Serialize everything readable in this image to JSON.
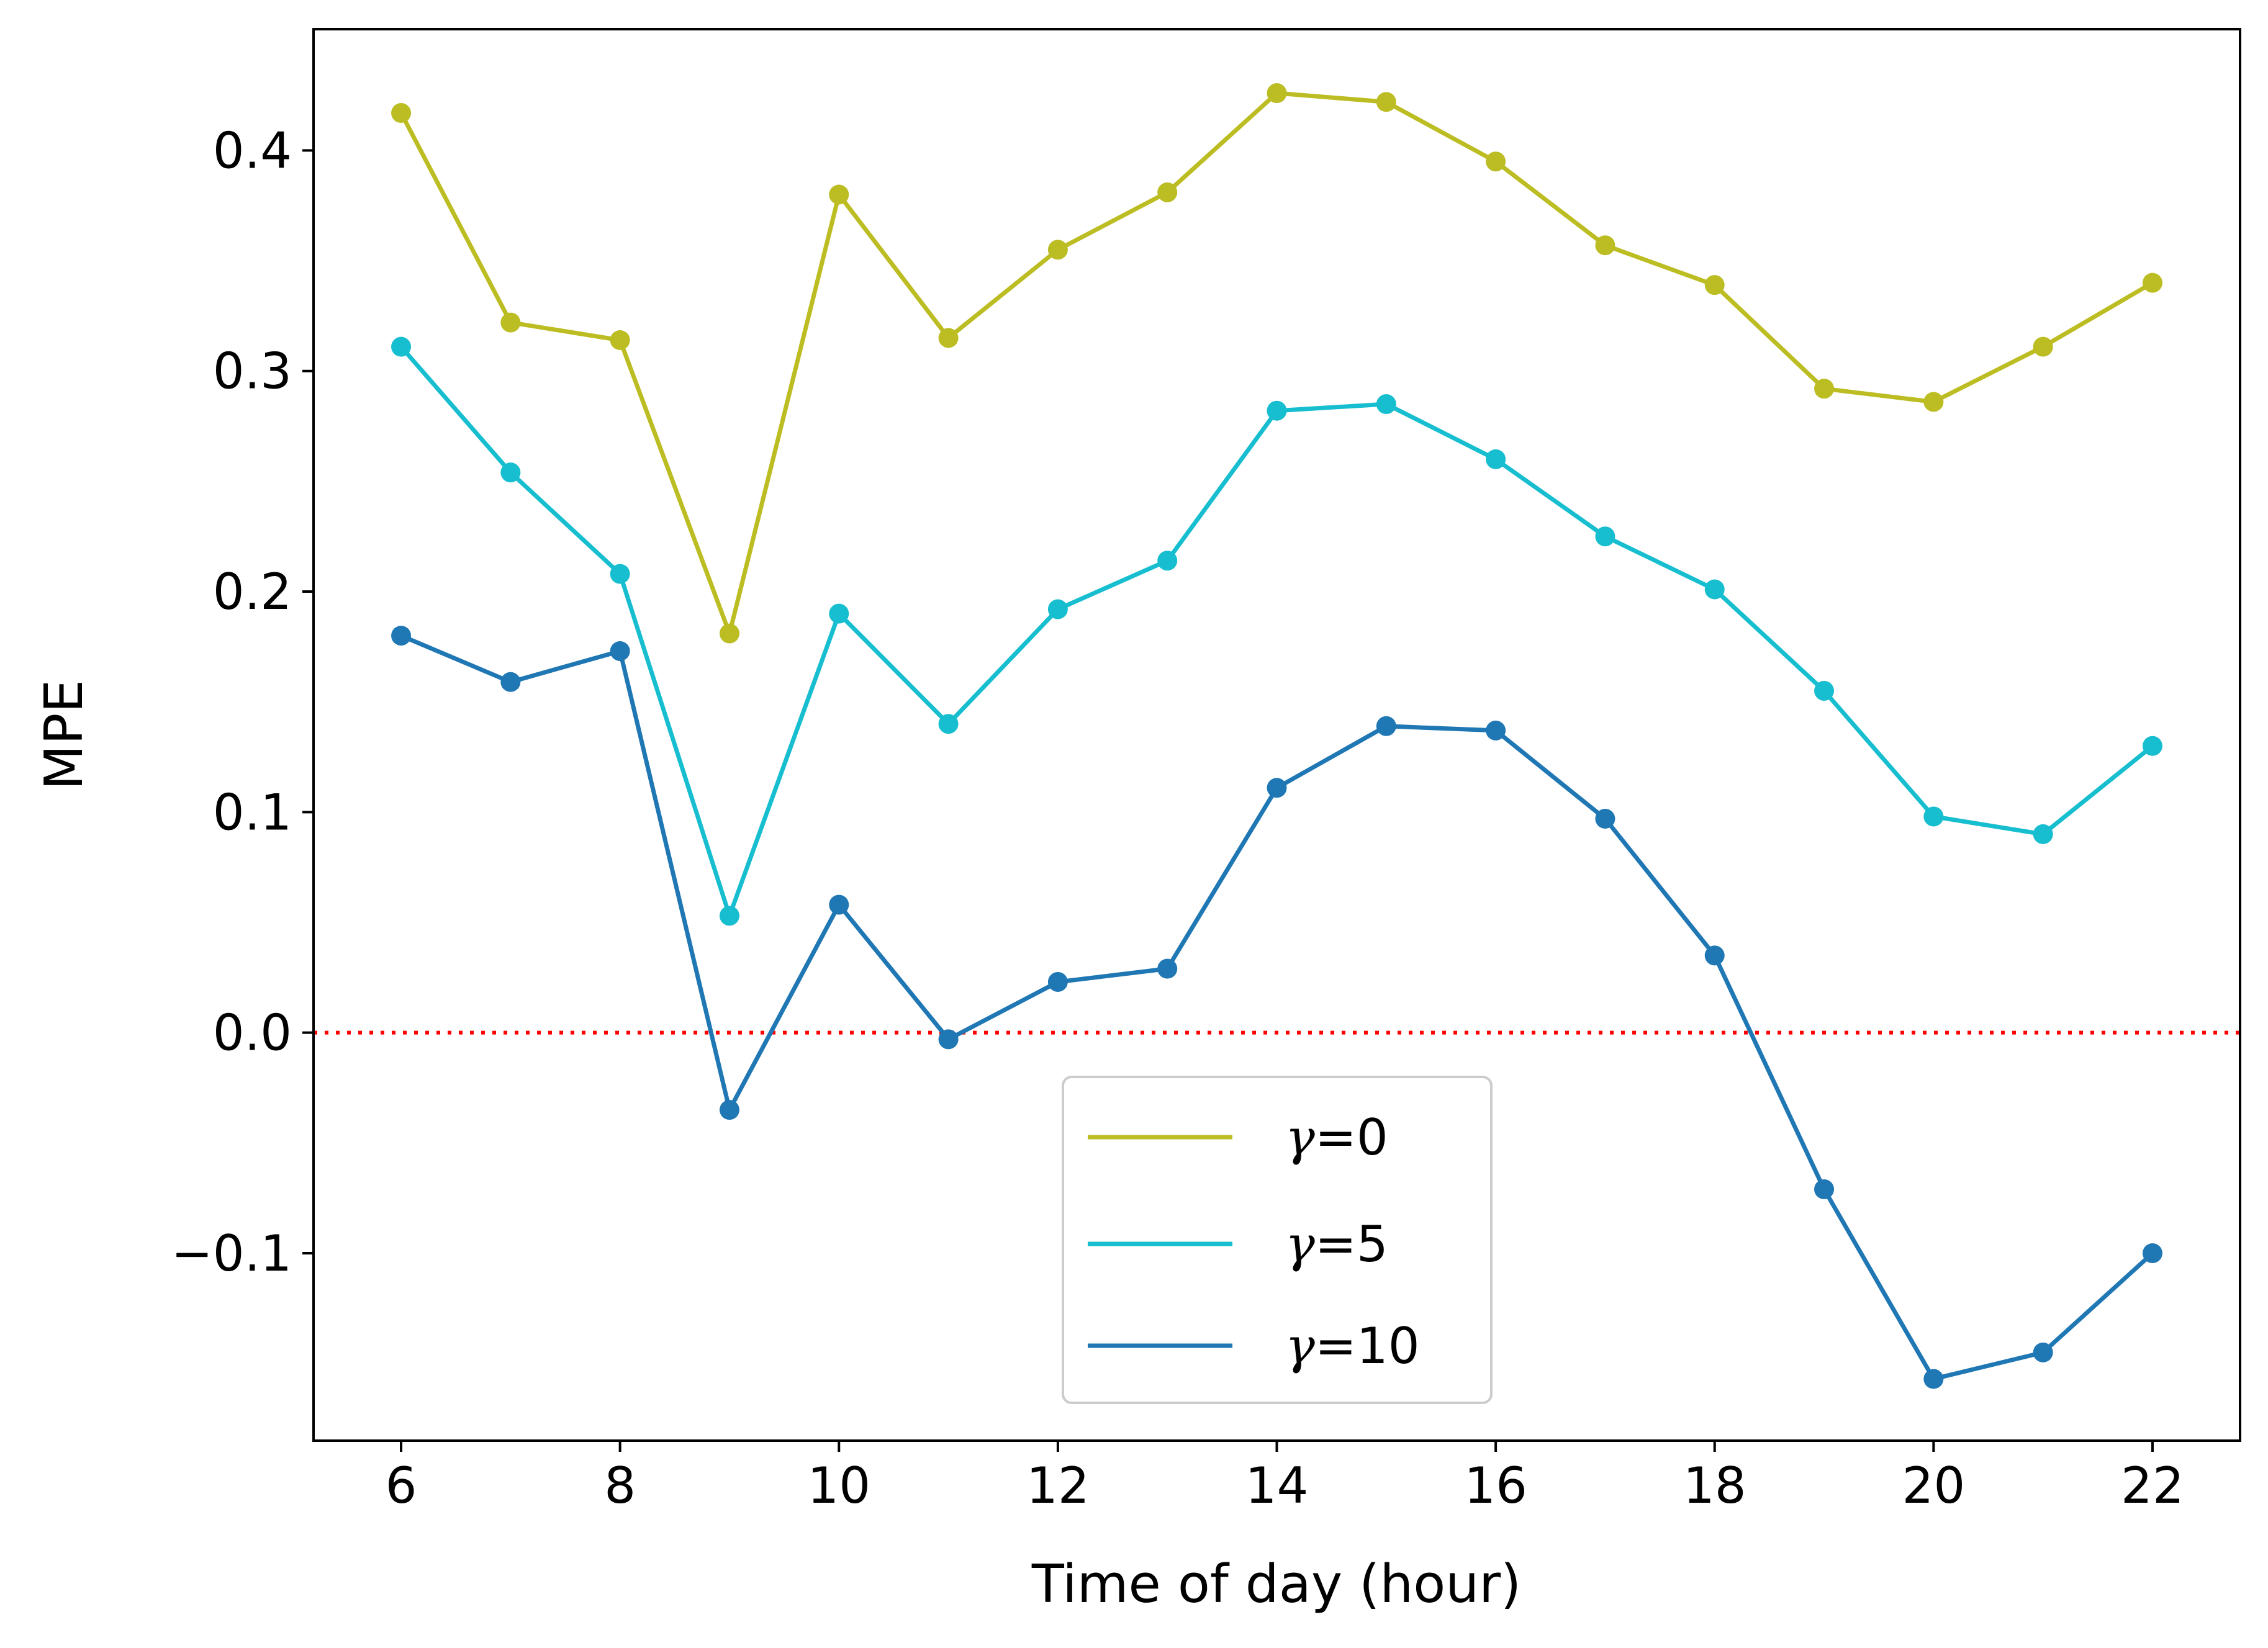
{
  "chart_data": {
    "type": "line",
    "xlabel": "Time of day (hour)",
    "ylabel": "MPE",
    "xlim": [
      5.2,
      22.8
    ],
    "ylim": [
      -0.185,
      0.455
    ],
    "x_ticks": [
      6,
      8,
      10,
      12,
      14,
      16,
      18,
      20,
      22
    ],
    "x_tick_labels": [
      "6",
      "8",
      "10",
      "12",
      "14",
      "16",
      "18",
      "20",
      "22"
    ],
    "y_ticks": [
      -0.1,
      0.0,
      0.1,
      0.2,
      0.3,
      0.4
    ],
    "y_tick_labels": [
      "−0.1",
      "0.0",
      "0.1",
      "0.2",
      "0.3",
      "0.4"
    ],
    "grid": false,
    "legend_position": "bottom-center",
    "reference_line": {
      "y": 0.0,
      "color": "#ff0000",
      "style": "dotted"
    },
    "x": [
      6,
      7,
      8,
      9,
      10,
      11,
      12,
      13,
      14,
      15,
      16,
      17,
      18,
      19,
      20,
      21,
      22
    ],
    "series": [
      {
        "name": "γ=0",
        "greek": "γ",
        "suffix": "=0",
        "color": "#bcbd22",
        "values": [
          0.417,
          0.322,
          0.314,
          0.181,
          0.38,
          0.315,
          0.355,
          0.381,
          0.426,
          0.422,
          0.395,
          0.357,
          0.339,
          0.292,
          0.286,
          0.311,
          0.34
        ]
      },
      {
        "name": "γ=5",
        "greek": "γ",
        "suffix": "=5",
        "color": "#17becf",
        "values": [
          0.311,
          0.254,
          0.208,
          0.053,
          0.19,
          0.14,
          0.192,
          0.214,
          0.282,
          0.285,
          0.26,
          0.225,
          0.201,
          0.155,
          0.098,
          0.09,
          0.13
        ]
      },
      {
        "name": "γ=10",
        "greek": "γ",
        "suffix": "=10",
        "color": "#1f77b4",
        "values": [
          0.18,
          0.159,
          0.173,
          -0.035,
          0.058,
          -0.003,
          0.023,
          0.029,
          0.111,
          0.139,
          0.137,
          0.097,
          0.035,
          -0.071,
          -0.157,
          -0.145,
          -0.1
        ]
      }
    ]
  }
}
